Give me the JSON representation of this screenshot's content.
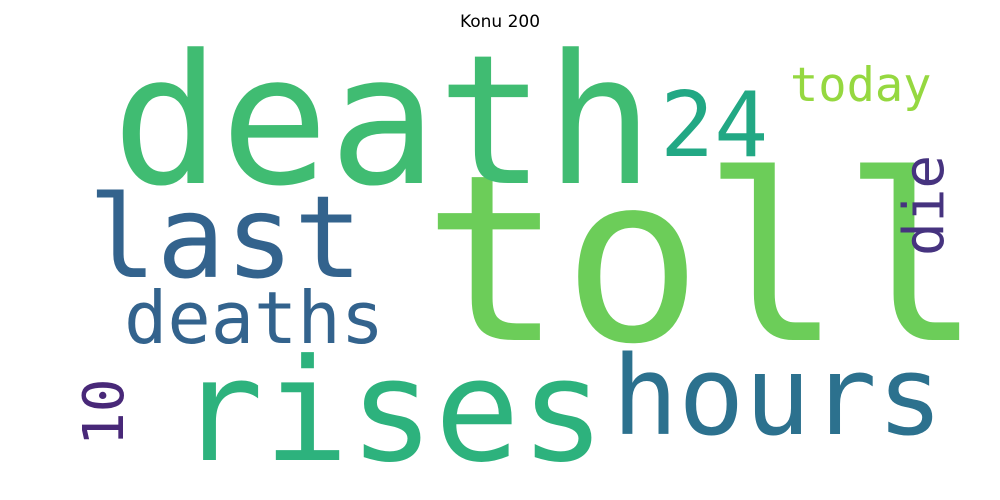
{
  "title": "Konu 200",
  "words": [
    {
      "text": "toll",
      "color": "#6ccd59",
      "weight": 1.0
    },
    {
      "text": "death",
      "color": "#40bc72",
      "weight": 0.78
    },
    {
      "text": "rises",
      "color": "#2db27d",
      "weight": 0.62
    },
    {
      "text": "last",
      "color": "#33638d",
      "weight": 0.5
    },
    {
      "text": "hours",
      "color": "#2c718e",
      "weight": 0.48
    },
    {
      "text": "24",
      "color": "#22a884",
      "weight": 0.38
    },
    {
      "text": "deaths",
      "color": "#33638d",
      "weight": 0.3
    },
    {
      "text": "die",
      "color": "#46337f",
      "weight": 0.23
    },
    {
      "text": "10",
      "color": "#482878",
      "weight": 0.23
    },
    {
      "text": "today",
      "color": "#95d840",
      "weight": 0.18
    }
  ]
}
